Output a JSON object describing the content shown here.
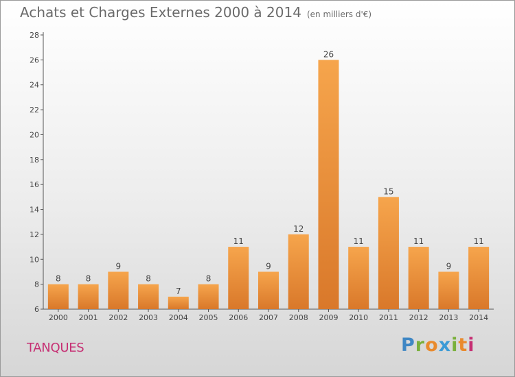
{
  "header": {
    "title": "Achats et Charges Externes 2000 à 2014",
    "subtitle": "(en milliers d'€)"
  },
  "commune": "TANQUES",
  "logo": {
    "letters": [
      "P",
      "r",
      "o",
      "x",
      "i",
      "t",
      "i"
    ]
  },
  "colors": {
    "bar_light": "#f6a54c",
    "bar_dark": "#d9782a",
    "axis": "#555555",
    "title": "#6a6a6a",
    "commune": "#c62f73"
  },
  "chart_data": {
    "type": "bar",
    "title": "Achats et Charges Externes 2000 à 2014",
    "categories": [
      "2000",
      "2001",
      "2002",
      "2003",
      "2004",
      "2005",
      "2006",
      "2007",
      "2008",
      "2009",
      "2010",
      "2011",
      "2012",
      "2013",
      "2014"
    ],
    "values": [
      8,
      8,
      9,
      8,
      7,
      8,
      11,
      9,
      12,
      26,
      11,
      15,
      11,
      9,
      11
    ],
    "ylim": [
      6,
      28
    ],
    "yticks": [
      6,
      8,
      10,
      12,
      14,
      16,
      18,
      20,
      22,
      24,
      26,
      28
    ],
    "xlabel": "",
    "ylabel": "",
    "grid": false,
    "data_labels": true
  }
}
